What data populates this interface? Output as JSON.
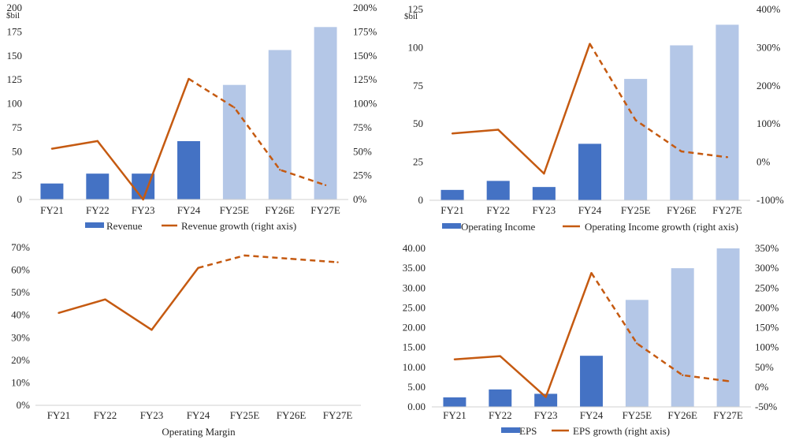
{
  "colors": {
    "bar_actual": "#4472C4",
    "bar_estimate": "#B4C7E7",
    "line": "#C55A11",
    "axis": "#d0d0d0",
    "text": "#262626"
  },
  "chart_data": [
    {
      "id": "revenue",
      "type": "bar+line",
      "unit_label": "$bil",
      "categories": [
        "FY21",
        "FY22",
        "FY23",
        "FY24",
        "FY25E",
        "FY26E",
        "FY27E"
      ],
      "estimate_from_index": 4,
      "bar_series": {
        "name": "Revenue",
        "values": [
          16.7,
          27.0,
          27.0,
          60.9,
          119.6,
          156.0,
          180.0
        ]
      },
      "line_series": {
        "name": "Revenue growth (right axis)",
        "values": [
          0.53,
          0.61,
          0.0,
          1.26,
          0.96,
          0.31,
          0.15
        ],
        "dashed_from_index": 3
      },
      "y_left": {
        "min": 0,
        "max": 200,
        "step": 25,
        "ticks": [
          "0",
          "25",
          "50",
          "75",
          "100",
          "125",
          "150",
          "175",
          "200"
        ]
      },
      "y_right": {
        "min": 0,
        "max": 2.0,
        "step": 0.25,
        "ticks": [
          "0%",
          "25%",
          "50%",
          "75%",
          "100%",
          "125%",
          "150%",
          "175%",
          "200%"
        ]
      },
      "title": ""
    },
    {
      "id": "operating-income",
      "type": "bar+line",
      "unit_label": "$bil",
      "categories": [
        "FY21",
        "FY22",
        "FY23",
        "FY24",
        "FY25E",
        "FY26E",
        "FY27E"
      ],
      "estimate_from_index": 4,
      "bar_series": {
        "name": "Operating Income",
        "values": [
          6.8,
          12.7,
          8.7,
          37.0,
          79.5,
          101.5,
          115.0
        ]
      },
      "line_series": {
        "name": "Operating Income growth (right axis)",
        "values": [
          0.75,
          0.85,
          -0.3,
          3.1,
          1.1,
          0.28,
          0.13
        ],
        "dashed_from_index": 3
      },
      "y_left": {
        "min": 0,
        "max": 125,
        "step": 25,
        "ticks": [
          "0",
          "25",
          "50",
          "75",
          "100",
          "125"
        ]
      },
      "y_right": {
        "min": -1.0,
        "max": 4.0,
        "step": 1.0,
        "ticks": [
          "-100%",
          "0%",
          "100%",
          "200%",
          "300%",
          "400%"
        ]
      },
      "title": ""
    },
    {
      "id": "operating-margin",
      "type": "line",
      "categories": [
        "FY21",
        "FY22",
        "FY23",
        "FY24",
        "FY25E",
        "FY26E",
        "FY27E"
      ],
      "line_series": {
        "name": "Operating Margin",
        "values": [
          0.41,
          0.47,
          0.335,
          0.61,
          0.665,
          0.65,
          0.635
        ],
        "dashed_from_index": 3
      },
      "y_left": {
        "min": 0,
        "max": 0.7,
        "step": 0.1,
        "ticks": [
          "0%",
          "10%",
          "20%",
          "30%",
          "40%",
          "50%",
          "60%",
          "70%"
        ]
      },
      "title": "Operating Margin"
    },
    {
      "id": "eps",
      "type": "bar+line",
      "categories": [
        "FY21",
        "FY22",
        "FY23",
        "FY24",
        "FY25E",
        "FY26E",
        "FY27E"
      ],
      "estimate_from_index": 4,
      "bar_series": {
        "name": "EPS",
        "values": [
          2.4,
          4.4,
          3.3,
          12.9,
          27.0,
          35.0,
          40.0
        ]
      },
      "line_series": {
        "name": "EPS growth (right axis)",
        "values": [
          0.7,
          0.78,
          -0.25,
          2.88,
          1.1,
          0.3,
          0.15
        ],
        "dashed_from_index": 3
      },
      "y_left": {
        "min": 0,
        "max": 40,
        "step": 5,
        "ticks": [
          "0.00",
          "5.00",
          "10.00",
          "15.00",
          "20.00",
          "25.00",
          "30.00",
          "35.00",
          "40.00"
        ]
      },
      "y_right": {
        "min": -0.5,
        "max": 3.5,
        "step": 0.5,
        "ticks": [
          "-50%",
          "0%",
          "50%",
          "100%",
          "150%",
          "200%",
          "250%",
          "300%",
          "350%"
        ]
      },
      "title": ""
    }
  ]
}
